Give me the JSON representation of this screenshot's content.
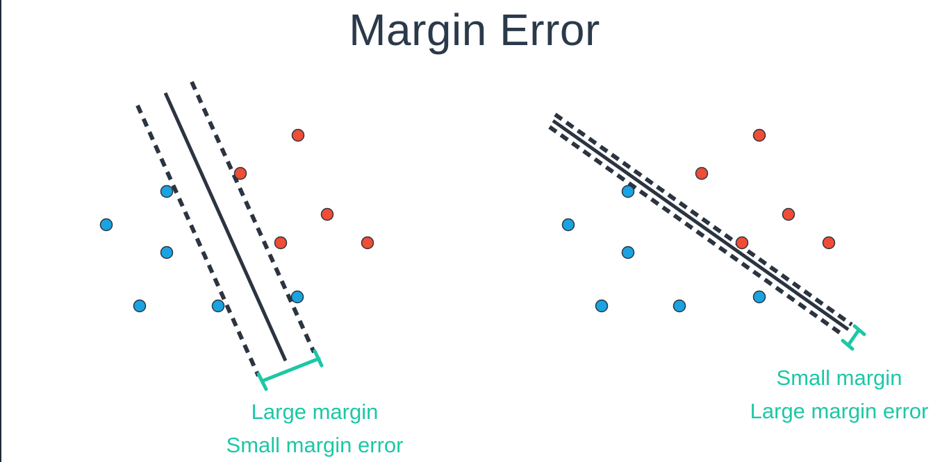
{
  "title": "Margin Error",
  "colors": {
    "title": "#2b3a4a",
    "line": "#2b3440",
    "margin_bracket": "#1cc7a6",
    "caption": "#1cc7a6",
    "blue_point": "#1aa3e0",
    "red_point": "#ef4d35",
    "point_stroke": "#2b3440"
  },
  "panels": [
    {
      "id": "left",
      "caption": {
        "line1": "Large margin",
        "line2": "Small margin error"
      }
    },
    {
      "id": "right",
      "caption": {
        "line1": "Small margin",
        "line2": "Large margin error"
      }
    }
  ]
}
